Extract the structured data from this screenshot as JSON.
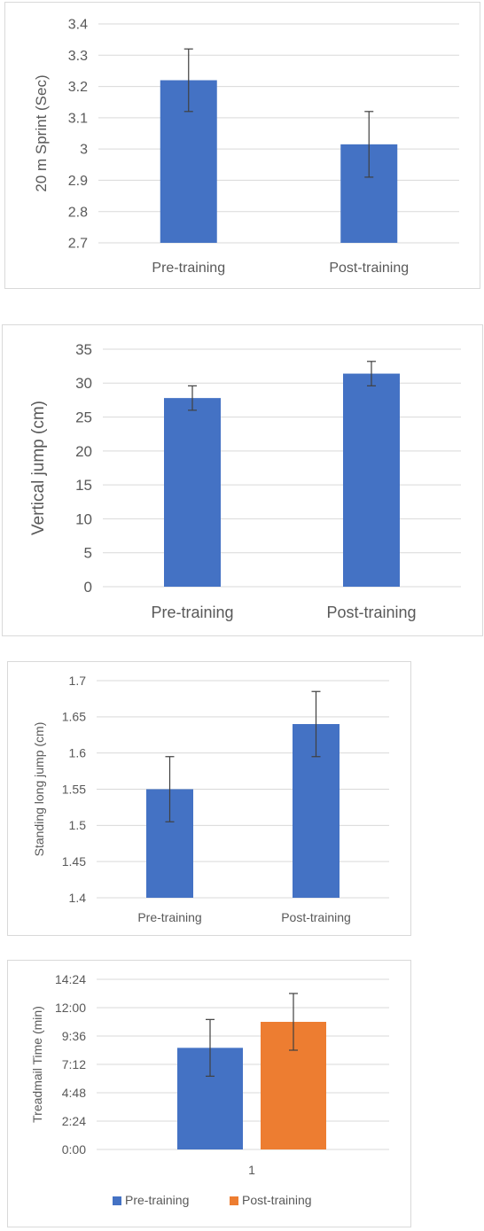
{
  "colors": {
    "blue": "#4472c4",
    "orange": "#ed7d31",
    "grid": "#d9d9d9",
    "text": "#595959",
    "error": "#404040"
  },
  "chart_data": [
    {
      "type": "bar",
      "categories": [
        "Pre-training",
        "Post-training"
      ],
      "values": [
        3.22,
        3.015
      ],
      "errors": [
        0.1,
        0.105
      ],
      "ylabel": "20 m Sprint (Sec)",
      "ylim": [
        2.7,
        3.4
      ],
      "yticks": [
        "2.7",
        "2.8",
        "2.9",
        "3",
        "3.1",
        "3.2",
        "3.3",
        "3.4"
      ],
      "grid": true
    },
    {
      "type": "bar",
      "categories": [
        "Pre-training",
        "Post-training"
      ],
      "values": [
        27.8,
        31.4
      ],
      "errors": [
        1.8,
        1.8
      ],
      "ylabel": "Vertical jump (cm)",
      "ylim": [
        0,
        35
      ],
      "yticks": [
        "0",
        "5",
        "10",
        "15",
        "20",
        "25",
        "30",
        "35"
      ],
      "grid": true
    },
    {
      "type": "bar",
      "categories": [
        "Pre-training",
        "Post-training"
      ],
      "values": [
        1.55,
        1.64
      ],
      "errors": [
        0.045,
        0.045
      ],
      "ylabel": "Standing long jump (cm)",
      "ylim": [
        1.4,
        1.7
      ],
      "yticks": [
        "1.4",
        "1.45",
        "1.5",
        "1.55",
        "1.6",
        "1.65",
        "1.7"
      ],
      "grid": true
    },
    {
      "type": "bar",
      "categories": [
        "1"
      ],
      "series": [
        {
          "name": "Pre-training",
          "values": [
            8.6
          ],
          "errors": [
            2.4
          ]
        },
        {
          "name": "Post-training",
          "values": [
            10.8
          ],
          "errors": [
            2.4
          ]
        }
      ],
      "ylabel": "Treadmail Time (min)",
      "ylim": [
        0,
        14.4
      ],
      "yticks": [
        "0:00",
        "2:24",
        "4:48",
        "7:12",
        "9:36",
        "12:00",
        "14:24"
      ],
      "legend": "bottom",
      "grid": true
    }
  ]
}
